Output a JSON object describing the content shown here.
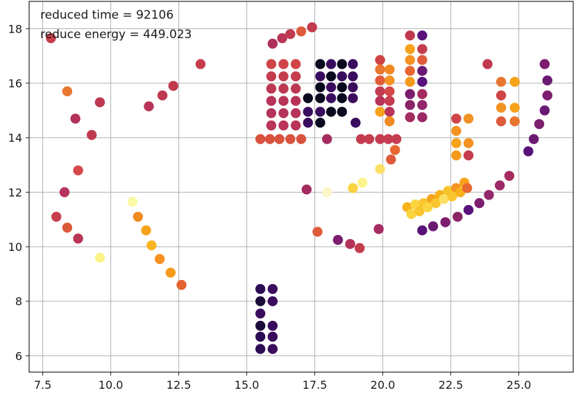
{
  "chart_data": {
    "type": "scatter",
    "colormap": "inferno",
    "grid": true,
    "xlim": [
      7.0,
      27.0
    ],
    "ylim": [
      5.4,
      19.0
    ],
    "x_ticks": [
      7.5,
      10.0,
      12.5,
      15.0,
      17.5,
      20.0,
      22.5,
      25.0
    ],
    "x_tick_labels": [
      "7.5",
      "10.0",
      "12.5",
      "15.0",
      "17.5",
      "20.0",
      "22.5",
      "25.0"
    ],
    "y_ticks": [
      6,
      8,
      10,
      12,
      14,
      16,
      18
    ],
    "y_tick_labels": [
      "6",
      "8",
      "10",
      "12",
      "14",
      "16",
      "18"
    ],
    "annotations": [
      "reduced time = 92106",
      "reduce energy = 449.023"
    ],
    "points": [
      {
        "x": 7.8,
        "y": 17.65,
        "color": "#c93e4c"
      },
      {
        "x": 8.4,
        "y": 15.7,
        "color": "#e8762f"
      },
      {
        "x": 8.7,
        "y": 14.7,
        "color": "#b33158"
      },
      {
        "x": 9.3,
        "y": 14.1,
        "color": "#c03a4f"
      },
      {
        "x": 9.6,
        "y": 15.3,
        "color": "#bd3851"
      },
      {
        "x": 8.8,
        "y": 12.8,
        "color": "#d4484a"
      },
      {
        "x": 8.3,
        "y": 12.0,
        "color": "#b7345b"
      },
      {
        "x": 8.0,
        "y": 11.1,
        "color": "#c83d4e"
      },
      {
        "x": 8.4,
        "y": 10.7,
        "color": "#dc5a3a"
      },
      {
        "x": 8.8,
        "y": 10.3,
        "color": "#b93457"
      },
      {
        "x": 9.6,
        "y": 9.6,
        "color": "#fbf48a"
      },
      {
        "x": 10.8,
        "y": 11.65,
        "color": "#fbf8a8"
      },
      {
        "x": 11.0,
        "y": 11.1,
        "color": "#f08a21"
      },
      {
        "x": 11.3,
        "y": 10.6,
        "color": "#f7a21b"
      },
      {
        "x": 11.5,
        "y": 10.05,
        "color": "#f9b521"
      },
      {
        "x": 11.8,
        "y": 9.55,
        "color": "#f59221"
      },
      {
        "x": 12.2,
        "y": 9.05,
        "color": "#f79a19"
      },
      {
        "x": 12.6,
        "y": 8.6,
        "color": "#e3642e"
      },
      {
        "x": 11.4,
        "y": 15.15,
        "color": "#b93457"
      },
      {
        "x": 11.9,
        "y": 15.55,
        "color": "#bd3851"
      },
      {
        "x": 12.3,
        "y": 15.9,
        "color": "#c03a4f"
      },
      {
        "x": 13.3,
        "y": 16.7,
        "color": "#c63c4e"
      },
      {
        "x": 15.95,
        "y": 17.45,
        "color": "#ae2f5b"
      },
      {
        "x": 16.3,
        "y": 17.65,
        "color": "#b93457"
      },
      {
        "x": 16.6,
        "y": 17.8,
        "color": "#c03a4f"
      },
      {
        "x": 17.0,
        "y": 17.9,
        "color": "#dd5b3a"
      },
      {
        "x": 17.4,
        "y": 18.05,
        "color": "#c33b4f"
      },
      {
        "x": 15.9,
        "y": 16.7,
        "color": "#cf4446"
      },
      {
        "x": 16.35,
        "y": 16.7,
        "color": "#cf4446"
      },
      {
        "x": 16.8,
        "y": 16.7,
        "color": "#cf4446"
      },
      {
        "x": 15.9,
        "y": 16.25,
        "color": "#c43c4e"
      },
      {
        "x": 16.35,
        "y": 16.25,
        "color": "#c43c4e"
      },
      {
        "x": 16.8,
        "y": 16.25,
        "color": "#c43c4e"
      },
      {
        "x": 15.9,
        "y": 15.8,
        "color": "#bd3851"
      },
      {
        "x": 16.35,
        "y": 15.8,
        "color": "#bd3851"
      },
      {
        "x": 16.8,
        "y": 15.8,
        "color": "#bd3851"
      },
      {
        "x": 15.9,
        "y": 15.35,
        "color": "#b73458"
      },
      {
        "x": 16.35,
        "y": 15.35,
        "color": "#b73458"
      },
      {
        "x": 16.8,
        "y": 15.35,
        "color": "#b73458"
      },
      {
        "x": 15.9,
        "y": 14.9,
        "color": "#b53359"
      },
      {
        "x": 16.35,
        "y": 14.9,
        "color": "#b53359"
      },
      {
        "x": 16.8,
        "y": 14.9,
        "color": "#b53359"
      },
      {
        "x": 15.9,
        "y": 14.45,
        "color": "#b93457"
      },
      {
        "x": 16.35,
        "y": 14.45,
        "color": "#b93457"
      },
      {
        "x": 16.8,
        "y": 14.45,
        "color": "#b93457"
      },
      {
        "x": 15.5,
        "y": 13.95,
        "color": "#d9523e"
      },
      {
        "x": 15.85,
        "y": 13.95,
        "color": "#d9523e"
      },
      {
        "x": 16.2,
        "y": 13.95,
        "color": "#d9523e"
      },
      {
        "x": 16.6,
        "y": 13.95,
        "color": "#d9523e"
      },
      {
        "x": 17.0,
        "y": 13.95,
        "color": "#d9523e"
      },
      {
        "x": 17.7,
        "y": 16.7,
        "color": "#0a0a1e"
      },
      {
        "x": 18.1,
        "y": 16.7,
        "color": "#3a0c5e"
      },
      {
        "x": 18.5,
        "y": 16.7,
        "color": "#0a0a1e"
      },
      {
        "x": 18.9,
        "y": 16.7,
        "color": "#3a0c5e"
      },
      {
        "x": 17.7,
        "y": 16.25,
        "color": "#3a0c5e"
      },
      {
        "x": 18.1,
        "y": 16.25,
        "color": "#0a0a1e"
      },
      {
        "x": 18.5,
        "y": 16.25,
        "color": "#3a0c5e"
      },
      {
        "x": 18.9,
        "y": 16.25,
        "color": "#3a0c5e"
      },
      {
        "x": 17.7,
        "y": 15.85,
        "color": "#0a0a1e"
      },
      {
        "x": 18.1,
        "y": 15.85,
        "color": "#3a0c5e"
      },
      {
        "x": 18.5,
        "y": 15.85,
        "color": "#0a0a1e"
      },
      {
        "x": 18.9,
        "y": 15.85,
        "color": "#3a0c5e"
      },
      {
        "x": 17.25,
        "y": 15.45,
        "color": "#0a0a1e"
      },
      {
        "x": 17.7,
        "y": 15.45,
        "color": "#0a0a1e"
      },
      {
        "x": 18.1,
        "y": 15.45,
        "color": "#3a0c5e"
      },
      {
        "x": 18.5,
        "y": 15.45,
        "color": "#0a0a1e"
      },
      {
        "x": 18.9,
        "y": 15.45,
        "color": "#3a0c5e"
      },
      {
        "x": 17.25,
        "y": 14.95,
        "color": "#3a0c5e"
      },
      {
        "x": 17.7,
        "y": 14.95,
        "color": "#3a0c5e"
      },
      {
        "x": 18.1,
        "y": 14.95,
        "color": "#0a0a1e"
      },
      {
        "x": 18.5,
        "y": 14.95,
        "color": "#0a0a1e"
      },
      {
        "x": 17.25,
        "y": 14.55,
        "color": "#3a0c5e"
      },
      {
        "x": 17.7,
        "y": 14.55,
        "color": "#0a0a1e"
      },
      {
        "x": 19.0,
        "y": 14.55,
        "color": "#3a0c5e"
      },
      {
        "x": 17.95,
        "y": 13.95,
        "color": "#a52c60"
      },
      {
        "x": 19.9,
        "y": 16.85,
        "color": "#cf4446"
      },
      {
        "x": 19.9,
        "y": 16.5,
        "color": "#e8762f"
      },
      {
        "x": 20.25,
        "y": 16.5,
        "color": "#f08a21"
      },
      {
        "x": 19.9,
        "y": 16.1,
        "color": "#e05b39"
      },
      {
        "x": 20.25,
        "y": 16.1,
        "color": "#f29323"
      },
      {
        "x": 19.9,
        "y": 15.7,
        "color": "#c33b4f"
      },
      {
        "x": 20.25,
        "y": 15.7,
        "color": "#d4484a"
      },
      {
        "x": 19.9,
        "y": 15.35,
        "color": "#b73458"
      },
      {
        "x": 20.25,
        "y": 15.35,
        "color": "#c43c4e"
      },
      {
        "x": 19.9,
        "y": 14.95,
        "color": "#f7a21b"
      },
      {
        "x": 20.25,
        "y": 14.95,
        "color": "#b93457"
      },
      {
        "x": 20.25,
        "y": 14.6,
        "color": "#f08a21"
      },
      {
        "x": 19.2,
        "y": 13.95,
        "color": "#c43c4e"
      },
      {
        "x": 19.5,
        "y": 13.95,
        "color": "#c43c4e"
      },
      {
        "x": 19.9,
        "y": 13.95,
        "color": "#c43c4e"
      },
      {
        "x": 20.2,
        "y": 13.95,
        "color": "#c43c4e"
      },
      {
        "x": 20.5,
        "y": 13.95,
        "color": "#c43c4e"
      },
      {
        "x": 20.45,
        "y": 13.55,
        "color": "#e8672f"
      },
      {
        "x": 20.3,
        "y": 13.2,
        "color": "#dd5b3a"
      },
      {
        "x": 19.9,
        "y": 12.85,
        "color": "#fbe065"
      },
      {
        "x": 19.25,
        "y": 12.35,
        "color": "#fbf48a"
      },
      {
        "x": 18.9,
        "y": 12.15,
        "color": "#f9d440"
      },
      {
        "x": 17.2,
        "y": 12.1,
        "color": "#a52c60"
      },
      {
        "x": 17.95,
        "y": 12.0,
        "color": "#fbf6c8"
      },
      {
        "x": 17.6,
        "y": 10.55,
        "color": "#e05b39"
      },
      {
        "x": 18.35,
        "y": 10.25,
        "color": "#7c1d6e"
      },
      {
        "x": 18.8,
        "y": 10.1,
        "color": "#b53359"
      },
      {
        "x": 19.15,
        "y": 9.95,
        "color": "#c43c4e"
      },
      {
        "x": 19.85,
        "y": 10.65,
        "color": "#a52c60"
      },
      {
        "x": 21.0,
        "y": 17.75,
        "color": "#c03a4f"
      },
      {
        "x": 21.45,
        "y": 17.75,
        "color": "#58127a"
      },
      {
        "x": 21.0,
        "y": 17.25,
        "color": "#f7a21b"
      },
      {
        "x": 21.45,
        "y": 17.25,
        "color": "#c43c4e"
      },
      {
        "x": 21.0,
        "y": 16.85,
        "color": "#f59221"
      },
      {
        "x": 21.45,
        "y": 16.85,
        "color": "#e05b39"
      },
      {
        "x": 21.0,
        "y": 16.45,
        "color": "#e8672f"
      },
      {
        "x": 21.45,
        "y": 16.45,
        "color": "#6a1a72"
      },
      {
        "x": 21.0,
        "y": 16.05,
        "color": "#f49a1b"
      },
      {
        "x": 21.45,
        "y": 16.05,
        "color": "#58127a"
      },
      {
        "x": 21.0,
        "y": 15.6,
        "color": "#7c1d6e"
      },
      {
        "x": 21.45,
        "y": 15.6,
        "color": "#a52c60"
      },
      {
        "x": 21.0,
        "y": 15.2,
        "color": "#8b2466"
      },
      {
        "x": 21.45,
        "y": 15.2,
        "color": "#93276a"
      },
      {
        "x": 21.0,
        "y": 14.75,
        "color": "#a52c60"
      },
      {
        "x": 21.45,
        "y": 14.75,
        "color": "#9c2964"
      },
      {
        "x": 22.7,
        "y": 14.7,
        "color": "#cf4446"
      },
      {
        "x": 23.15,
        "y": 14.7,
        "color": "#f29323"
      },
      {
        "x": 22.7,
        "y": 14.25,
        "color": "#f29323"
      },
      {
        "x": 22.7,
        "y": 13.8,
        "color": "#f7a21b"
      },
      {
        "x": 23.15,
        "y": 13.8,
        "color": "#f59221"
      },
      {
        "x": 22.7,
        "y": 13.35,
        "color": "#f49a1b"
      },
      {
        "x": 23.15,
        "y": 13.35,
        "color": "#c43c4e"
      },
      {
        "x": 23.85,
        "y": 16.7,
        "color": "#c03a4f"
      },
      {
        "x": 24.35,
        "y": 16.05,
        "color": "#e8762f"
      },
      {
        "x": 24.85,
        "y": 16.05,
        "color": "#f7a21b"
      },
      {
        "x": 24.35,
        "y": 15.55,
        "color": "#cf4446"
      },
      {
        "x": 24.35,
        "y": 15.1,
        "color": "#f29323"
      },
      {
        "x": 24.85,
        "y": 15.1,
        "color": "#f7a21b"
      },
      {
        "x": 24.35,
        "y": 14.6,
        "color": "#dd5b3a"
      },
      {
        "x": 24.85,
        "y": 14.6,
        "color": "#e8762f"
      },
      {
        "x": 20.9,
        "y": 11.45,
        "color": "#f7b21b"
      },
      {
        "x": 21.2,
        "y": 11.55,
        "color": "#fbd440"
      },
      {
        "x": 21.5,
        "y": 11.6,
        "color": "#f9c52c"
      },
      {
        "x": 21.8,
        "y": 11.75,
        "color": "#f4a41f"
      },
      {
        "x": 22.1,
        "y": 11.9,
        "color": "#f7b21b"
      },
      {
        "x": 22.4,
        "y": 12.05,
        "color": "#f9c52c"
      },
      {
        "x": 22.7,
        "y": 12.15,
        "color": "#f29323"
      },
      {
        "x": 23.0,
        "y": 12.35,
        "color": "#f7a21b"
      },
      {
        "x": 21.05,
        "y": 11.2,
        "color": "#fbd440"
      },
      {
        "x": 21.35,
        "y": 11.3,
        "color": "#f9c52c"
      },
      {
        "x": 21.65,
        "y": 11.45,
        "color": "#fbd440"
      },
      {
        "x": 21.95,
        "y": 11.6,
        "color": "#f9c52c"
      },
      {
        "x": 22.25,
        "y": 11.75,
        "color": "#fbe065"
      },
      {
        "x": 22.55,
        "y": 11.85,
        "color": "#f9c52c"
      },
      {
        "x": 22.85,
        "y": 12.0,
        "color": "#f7b21b"
      },
      {
        "x": 23.1,
        "y": 12.15,
        "color": "#e8672f"
      },
      {
        "x": 21.45,
        "y": 10.6,
        "color": "#58127a"
      },
      {
        "x": 21.85,
        "y": 10.75,
        "color": "#6a1a72"
      },
      {
        "x": 22.3,
        "y": 10.9,
        "color": "#7c1d6e"
      },
      {
        "x": 22.75,
        "y": 11.1,
        "color": "#8b2466"
      },
      {
        "x": 23.15,
        "y": 11.35,
        "color": "#58127a"
      },
      {
        "x": 23.55,
        "y": 11.6,
        "color": "#7c1d6e"
      },
      {
        "x": 23.9,
        "y": 11.9,
        "color": "#93276a"
      },
      {
        "x": 24.3,
        "y": 12.25,
        "color": "#9c2964"
      },
      {
        "x": 24.65,
        "y": 12.6,
        "color": "#a52c60"
      },
      {
        "x": 25.35,
        "y": 13.5,
        "color": "#58127a"
      },
      {
        "x": 25.55,
        "y": 13.95,
        "color": "#6a1a72"
      },
      {
        "x": 25.75,
        "y": 14.5,
        "color": "#7c1d6e"
      },
      {
        "x": 25.95,
        "y": 15.0,
        "color": "#6a1a72"
      },
      {
        "x": 26.05,
        "y": 15.55,
        "color": "#7c1d6e"
      },
      {
        "x": 26.05,
        "y": 16.1,
        "color": "#6a1a72"
      },
      {
        "x": 25.95,
        "y": 16.7,
        "color": "#7c1d6e"
      },
      {
        "x": 15.5,
        "y": 8.45,
        "color": "#2c0b55"
      },
      {
        "x": 15.95,
        "y": 8.45,
        "color": "#3a0c5e"
      },
      {
        "x": 15.5,
        "y": 8.0,
        "color": "#1a0b3a"
      },
      {
        "x": 15.95,
        "y": 8.0,
        "color": "#3a0c5e"
      },
      {
        "x": 15.5,
        "y": 7.55,
        "color": "#3a0c5e"
      },
      {
        "x": 15.5,
        "y": 7.1,
        "color": "#1a0b3a"
      },
      {
        "x": 15.95,
        "y": 7.1,
        "color": "#3a0c5e"
      },
      {
        "x": 15.5,
        "y": 6.7,
        "color": "#2c0b55"
      },
      {
        "x": 15.95,
        "y": 6.7,
        "color": "#3a0c5e"
      },
      {
        "x": 15.5,
        "y": 6.25,
        "color": "#2c0b55"
      },
      {
        "x": 15.95,
        "y": 6.25,
        "color": "#3a0c5e"
      }
    ]
  }
}
